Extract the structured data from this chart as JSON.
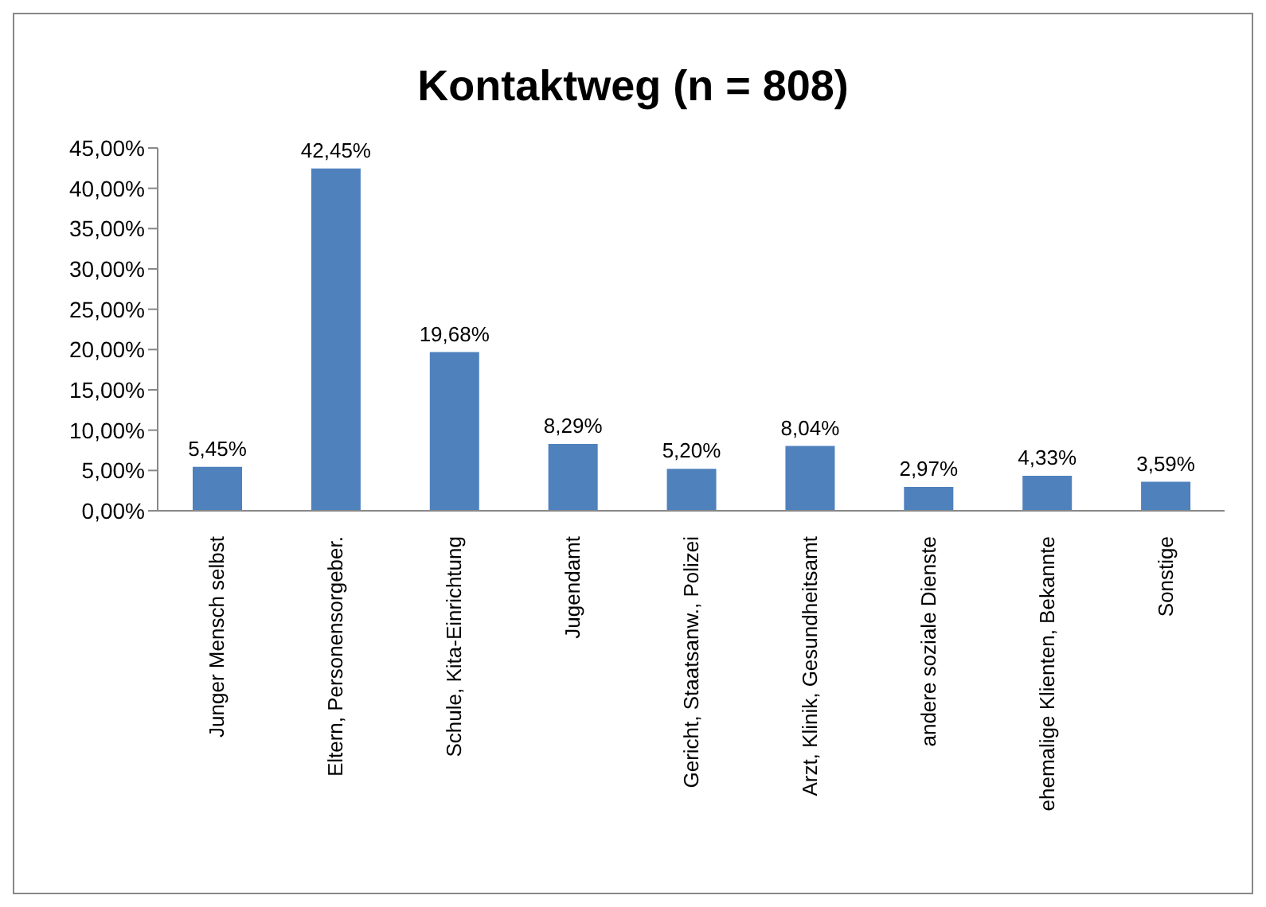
{
  "chart_data": {
    "type": "bar",
    "title": "Kontaktweg (n = 808)",
    "categories": [
      "Junger Mensch selbst",
      "Eltern, Personensorgeber.",
      "Schule, Kita-Einrichtung",
      "Jugendamt",
      "Gericht, Staatsanw., Polizei",
      "Arzt, Klinik, Gesundheitsamt",
      "andere soziale Dienste",
      "ehemalige Klienten, Bekannte",
      "Sonstige"
    ],
    "values": [
      5.45,
      42.45,
      19.68,
      8.29,
      5.2,
      8.04,
      2.97,
      4.33,
      3.59
    ],
    "value_labels": [
      "5,45%",
      "42,45%",
      "19,68%",
      "8,29%",
      "5,20%",
      "8,04%",
      "2,97%",
      "4,33%",
      "3,59%"
    ],
    "color": "#4f81bd",
    "ylim": [
      0,
      45
    ],
    "yticks": [
      {
        "value": 0,
        "label": "0,00%"
      },
      {
        "value": 5,
        "label": "5,00%"
      },
      {
        "value": 10,
        "label": "10,00%"
      },
      {
        "value": 15,
        "label": "15,00%"
      },
      {
        "value": 20,
        "label": "20,00%"
      },
      {
        "value": 25,
        "label": "25,00%"
      },
      {
        "value": 30,
        "label": "30,00%"
      },
      {
        "value": 35,
        "label": "35,00%"
      },
      {
        "value": 40,
        "label": "40,00%"
      },
      {
        "value": 45,
        "label": "45,00%"
      }
    ],
    "grid": false
  }
}
